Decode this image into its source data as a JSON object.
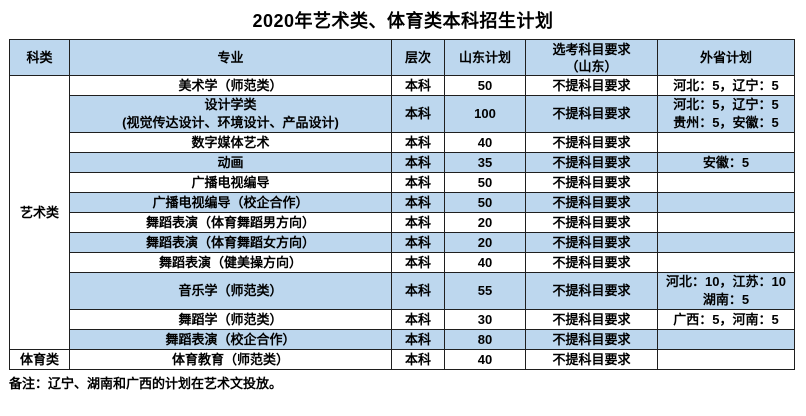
{
  "title": "2020年艺术类、体育类本科招生计划",
  "footnote": "备注：辽宁、湖南和广西的计划在艺术文投放。",
  "colors": {
    "row_band": "#bdd7ee",
    "header_bg": "#bdd7ee",
    "border": "#1f1f1f"
  },
  "table": {
    "headers": {
      "category": "科类",
      "major": "专业",
      "level": "层次",
      "shandong_plan": "山东计划",
      "subject_requirement": "选考科目要求\n（山东）",
      "out_province_plan": "外省计划"
    },
    "groups": [
      {
        "category": "艺术类",
        "rows": [
          {
            "major": "美术学（师范类）",
            "level": "本科",
            "shandong": "50",
            "subject_req": "不提科目要求",
            "out_province": "河北：5，辽宁：5",
            "shaded": false
          },
          {
            "major": "设计学类\n(视觉传达设计、环境设计、产品设计)",
            "level": "本科",
            "shandong": "100",
            "subject_req": "不提科目要求",
            "out_province": "河北：5，辽宁：5\n贵州：5，安徽：5",
            "shaded": true
          },
          {
            "major": "数字媒体艺术",
            "level": "本科",
            "shandong": "40",
            "subject_req": "不提科目要求",
            "out_province": "",
            "shaded": false
          },
          {
            "major": "动画",
            "level": "本科",
            "shandong": "35",
            "subject_req": "不提科目要求",
            "out_province": "安徽：5",
            "shaded": true
          },
          {
            "major": "广播电视编导",
            "level": "本科",
            "shandong": "50",
            "subject_req": "不提科目要求",
            "out_province": "",
            "shaded": false
          },
          {
            "major": "广播电视编导（校企合作）",
            "level": "本科",
            "shandong": "50",
            "subject_req": "不提科目要求",
            "out_province": "",
            "shaded": true
          },
          {
            "major": "舞蹈表演（体育舞蹈男方向）",
            "level": "本科",
            "shandong": "20",
            "subject_req": "不提科目要求",
            "out_province": "",
            "shaded": false
          },
          {
            "major": "舞蹈表演（体育舞蹈女方向）",
            "level": "本科",
            "shandong": "20",
            "subject_req": "不提科目要求",
            "out_province": "",
            "shaded": true
          },
          {
            "major": "舞蹈表演（健美操方向）",
            "level": "本科",
            "shandong": "40",
            "subject_req": "不提科目要求",
            "out_province": "",
            "shaded": false
          },
          {
            "major": "音乐学（师范类）",
            "level": "本科",
            "shandong": "55",
            "subject_req": "不提科目要求",
            "out_province": "河北：10，江苏：10\n湖南：5",
            "shaded": true
          },
          {
            "major": "舞蹈学（师范类）",
            "level": "本科",
            "shandong": "30",
            "subject_req": "不提科目要求",
            "out_province": "广西：5，河南：5",
            "shaded": false
          },
          {
            "major": "舞蹈表演（校企合作）",
            "level": "本科",
            "shandong": "80",
            "subject_req": "不提科目要求",
            "out_province": "",
            "shaded": true
          }
        ]
      },
      {
        "category": "体育类",
        "rows": [
          {
            "major": "体育教育（师范类）",
            "level": "本科",
            "shandong": "40",
            "subject_req": "不提科目要求",
            "out_province": "",
            "shaded": false
          }
        ]
      }
    ]
  }
}
